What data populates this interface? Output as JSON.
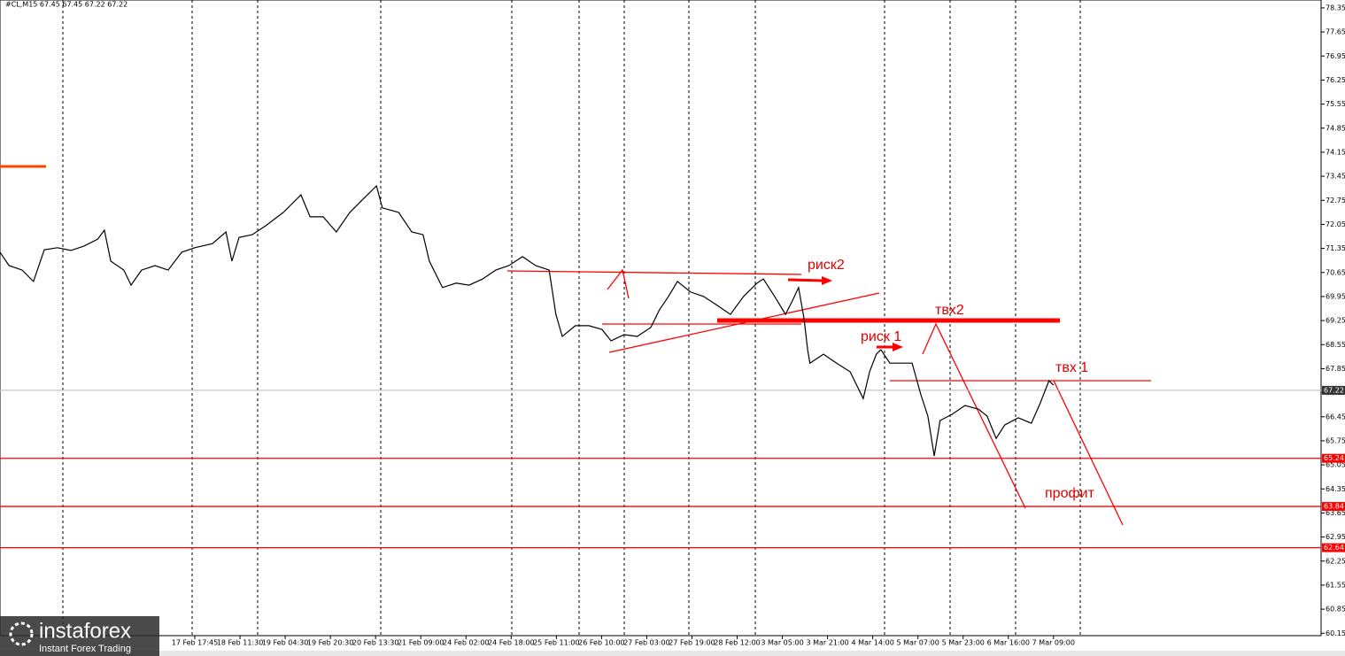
{
  "chart_data": {
    "type": "line",
    "title": "#CL,M15  67.45 67.45 67.22 67.22",
    "xlim": [
      -4.31,
      24.92
    ],
    "ylim": [
      60.08,
      78.58
    ],
    "xticks": [
      {
        "value": 0,
        "label": "17 Feb 17:45"
      },
      {
        "value": 1,
        "label": "18 Feb 11:30"
      },
      {
        "value": 2,
        "label": "19 Feb 04:30"
      },
      {
        "value": 3,
        "label": "19 Feb 20:30"
      },
      {
        "value": 4,
        "label": "20 Feb 13:30"
      },
      {
        "value": 5,
        "label": "21 Feb 09:00"
      },
      {
        "value": 6,
        "label": "24 Feb 02:00"
      },
      {
        "value": 7,
        "label": "24 Feb 18:00"
      },
      {
        "value": 8,
        "label": "25 Feb 11:00"
      },
      {
        "value": 9,
        "label": "26 Feb 10:00"
      },
      {
        "value": 10,
        "label": "27 Feb 03:00"
      },
      {
        "value": 11,
        "label": "27 Feb 19:00"
      },
      {
        "value": 12,
        "label": "28 Feb 12:00"
      },
      {
        "value": 13,
        "label": "3 Mar 05:00"
      },
      {
        "value": 14,
        "label": "3 Mar 21:00"
      },
      {
        "value": 15,
        "label": "4 Mar 14:00"
      },
      {
        "value": 16,
        "label": "5 Mar 07:00"
      },
      {
        "value": 17,
        "label": "5 Mar 23:00"
      },
      {
        "value": 18,
        "label": "6 Mar 16:00"
      },
      {
        "value": 19,
        "label": "7 Mar 09:00"
      }
    ],
    "yticks": [
      60.15,
      60.85,
      61.55,
      62.25,
      62.95,
      63.65,
      64.35,
      65.05,
      65.75,
      66.45,
      67.15,
      67.85,
      68.55,
      69.25,
      69.95,
      70.65,
      71.35,
      72.05,
      72.75,
      73.45,
      74.15,
      74.85,
      75.55,
      76.25,
      76.95,
      77.65,
      78.35
    ],
    "series": [
      {
        "name": "#CL,M15",
        "color": "#000000",
        "x": [
          -4.31,
          -4.11,
          -3.82,
          -3.57,
          -3.33,
          -3.04,
          -2.74,
          -2.45,
          -2.15,
          -2.0,
          -1.86,
          -1.57,
          -1.41,
          -1.18,
          -0.88,
          -0.59,
          -0.29,
          0,
          0.39,
          0.69,
          0.82,
          0.98,
          1.27,
          1.57,
          1.96,
          2.35,
          2.55,
          2.84,
          3.13,
          3.43,
          3.72,
          4.02,
          4.15,
          4.51,
          4.8,
          5.05,
          5.19,
          5.48,
          5.78,
          6.07,
          6.37,
          6.66,
          6.95,
          7.25,
          7.54,
          7.84,
          7.99,
          8.13,
          8.42,
          8.72,
          9.01,
          9.21,
          9.5,
          9.79,
          10.09,
          10.28,
          10.48,
          10.68,
          10.97,
          11.26,
          11.56,
          11.85,
          12.14,
          12.44,
          12.58,
          12.83,
          13.07,
          13.22,
          13.36,
          13.48,
          13.56,
          13.61,
          13.91,
          14.2,
          14.5,
          14.79,
          14.93,
          15.08,
          15.18,
          15.38,
          15.67,
          15.87,
          16.06,
          16.22,
          16.36,
          16.49,
          16.75,
          17.04,
          17.34,
          17.53,
          17.73,
          17.92,
          18.22,
          18.51,
          18.71,
          18.9,
          19.0
        ],
        "values": [
          71.24,
          70.85,
          70.72,
          70.39,
          71.31,
          71.37,
          71.29,
          71.42,
          71.62,
          71.88,
          70.98,
          70.72,
          70.28,
          70.72,
          70.85,
          70.72,
          71.24,
          71.37,
          71.49,
          71.83,
          70.98,
          71.67,
          71.75,
          72.01,
          72.4,
          72.91,
          72.27,
          72.27,
          71.83,
          72.4,
          72.78,
          73.17,
          72.53,
          72.4,
          71.83,
          71.75,
          70.98,
          70.21,
          70.34,
          70.28,
          70.46,
          70.72,
          70.85,
          71.11,
          70.85,
          70.72,
          69.43,
          68.79,
          69.1,
          69.1,
          68.99,
          68.66,
          68.84,
          68.79,
          69.05,
          69.56,
          69.95,
          70.39,
          70.08,
          69.95,
          69.69,
          69.43,
          69.95,
          70.34,
          70.46,
          69.95,
          69.43,
          69.82,
          70.21,
          69.3,
          68.4,
          68.01,
          68.27,
          68.01,
          67.76,
          66.98,
          67.76,
          68.27,
          68.4,
          68.01,
          68.01,
          68.01,
          67.11,
          66.47,
          65.31,
          66.34,
          66.52,
          66.78,
          66.67,
          66.47,
          65.82,
          66.21,
          66.42,
          66.26,
          66.86,
          67.5,
          67.37
        ]
      }
    ],
    "current_price": 67.22,
    "levels": [
      65.24,
      63.84,
      62.64
    ],
    "level_color": "#ff0000",
    "annotations": [
      "риск2",
      "твх2",
      "риск 1",
      "твх 1",
      "профит"
    ]
  },
  "logo": {
    "name": "instaforex",
    "tagline": "Instant Forex Trading"
  }
}
